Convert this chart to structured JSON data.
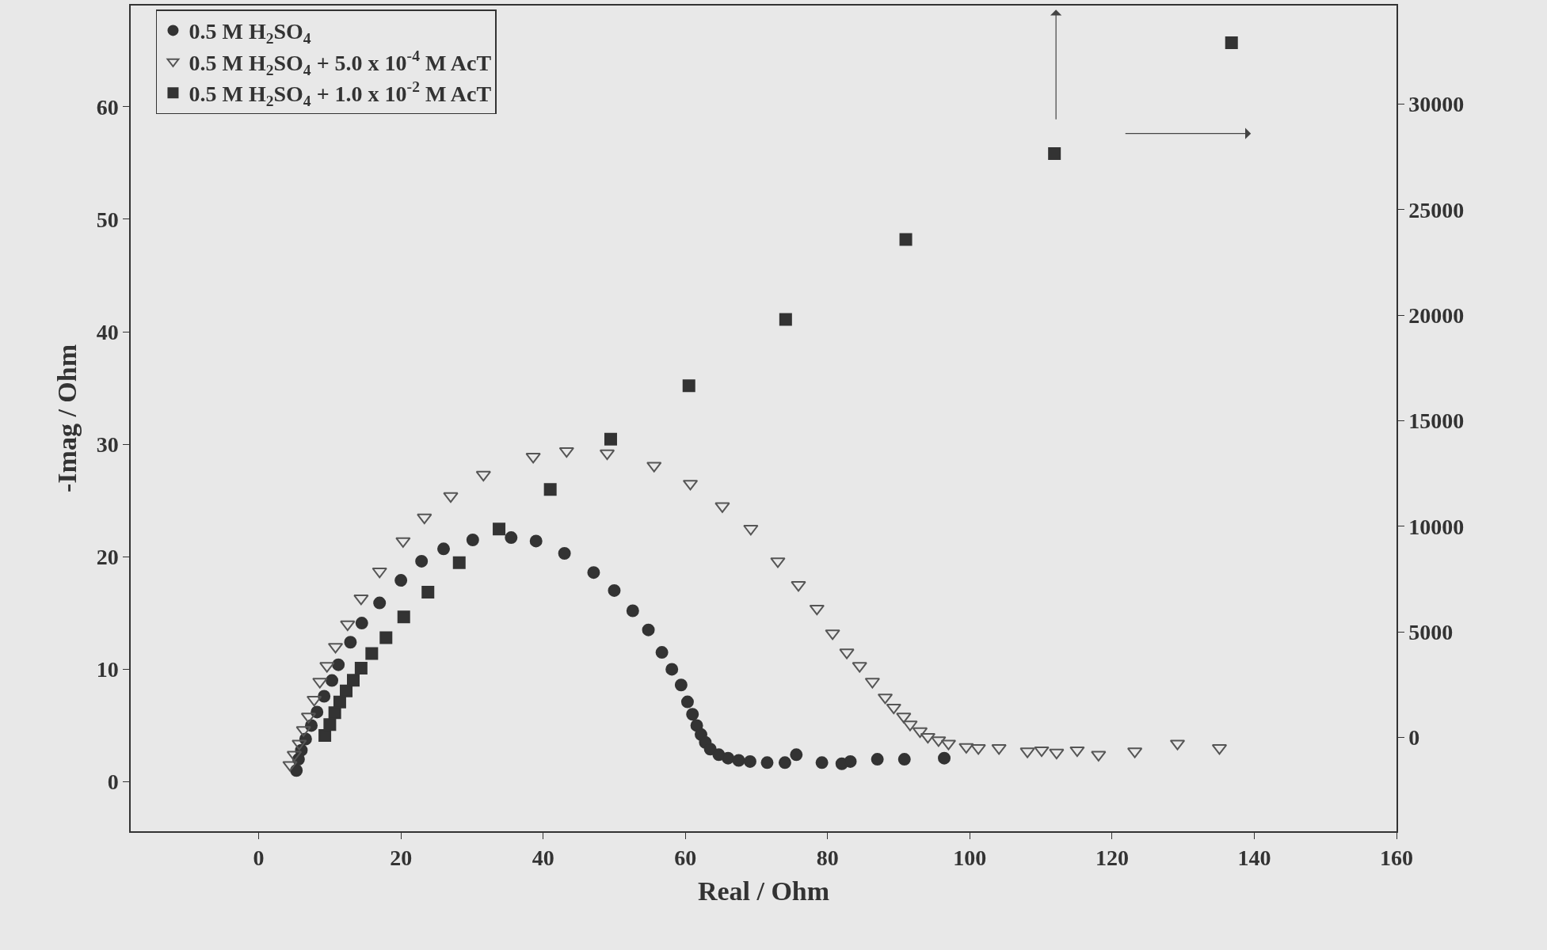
{
  "chart_data": {
    "type": "scatter",
    "xlabel": "Real / Ohm",
    "ylabel": "-Imag / Ohm",
    "xlim": [
      -18,
      160
    ],
    "xticks": [
      0,
      20,
      40,
      60,
      80,
      100,
      120,
      140,
      160
    ],
    "ylim": [
      -4.4,
      69
    ],
    "yticks": [
      0,
      10,
      20,
      30,
      40,
      50,
      60
    ],
    "y2lim": [
      -4445,
      34675
    ],
    "y2ticks": [
      0,
      5000,
      10000,
      15000,
      20000,
      25000,
      30000
    ],
    "legend": "top left",
    "grid": false,
    "series": [
      {
        "name": "0.5 M H$_{2}$SO$_{4}$",
        "color": "#333333",
        "marker": "circle",
        "x": [
          5.3,
          5.6,
          6.0,
          6.6,
          7.4,
          8.2,
          9.2,
          10.3,
          11.2,
          12.9,
          14.5,
          17.0,
          20.0,
          22.9,
          26.0,
          30.1,
          35.5,
          39.0,
          43.0,
          47.1,
          50.0,
          52.6,
          54.8,
          56.7,
          58.1,
          59.4,
          60.3,
          61.0,
          61.6,
          62.2,
          62.8,
          63.5,
          64.7,
          66.0,
          67.5,
          69.1,
          71.5,
          74.0,
          75.6,
          79.2,
          82.0,
          83.2,
          87.0,
          90.8,
          96.4
        ],
        "values": [
          1.0,
          2.0,
          2.8,
          3.8,
          5.0,
          6.2,
          7.6,
          9.0,
          10.4,
          12.4,
          14.1,
          15.9,
          17.9,
          19.6,
          20.7,
          21.5,
          21.7,
          21.4,
          20.3,
          18.6,
          17.0,
          15.2,
          13.5,
          11.5,
          10.0,
          8.6,
          7.1,
          6.0,
          5.0,
          4.2,
          3.5,
          2.9,
          2.4,
          2.1,
          1.9,
          1.8,
          1.7,
          1.7,
          2.4,
          1.7,
          1.6,
          1.8,
          2.0,
          2.0,
          2.1
        ]
      },
      {
        "name": "0.5 M H$_{2}$SO$_{4}$ + 5.0 x 10$^{-4}$ M AcT",
        "color": "#555555",
        "marker": "triangle",
        "x": [
          4.4,
          5.0,
          5.7,
          6.3,
          7.0,
          7.8,
          8.6,
          9.6,
          10.8,
          12.5,
          14.4,
          17.0,
          20.3,
          23.3,
          27.0,
          31.6,
          38.6,
          43.3,
          49.0,
          55.6,
          60.7,
          65.2,
          69.2,
          73.0,
          75.9,
          78.5,
          80.7,
          82.7,
          84.5,
          86.3,
          88.1,
          89.3,
          90.7,
          91.6,
          93.0,
          94.1,
          95.6,
          97.0,
          99.5,
          101.2,
          104.1,
          108.1,
          110.1,
          112.2,
          115.1,
          118.1,
          123.2,
          129.2,
          135.1
        ],
        "values": [
          1.5,
          2.4,
          3.4,
          4.6,
          5.8,
          7.3,
          8.9,
          10.3,
          12.0,
          14.0,
          16.3,
          18.7,
          21.4,
          23.5,
          25.4,
          27.3,
          28.9,
          29.4,
          29.2,
          28.1,
          26.5,
          24.5,
          22.5,
          19.6,
          17.5,
          15.4,
          13.2,
          11.5,
          10.3,
          8.9,
          7.5,
          6.6,
          5.8,
          5.1,
          4.5,
          4.0,
          3.7,
          3.4,
          3.1,
          3.0,
          3.0,
          2.7,
          2.8,
          2.6,
          2.8,
          2.4,
          2.7,
          3.4,
          3.0
        ]
      },
      {
        "name": "0.5 M H$_{2}$SO$_{4}$ + 1.0 x 10$^{-2}$ M AcT",
        "color": "#333333",
        "marker": "square",
        "axis": "y2",
        "x": [
          9.3,
          10.0,
          10.7,
          11.4,
          12.3,
          13.3,
          14.4,
          15.9,
          17.9,
          20.4,
          23.8,
          28.2,
          33.8,
          41.0,
          49.5,
          60.5,
          74.1,
          91.0,
          111.9,
          136.8
        ],
        "values": [
          90,
          610,
          1170,
          1680,
          2200,
          2710,
          3280,
          3980,
          4730,
          5710,
          6880,
          8280,
          9870,
          11750,
          14130,
          16660,
          19800,
          23590,
          27660,
          32910
        ]
      }
    ]
  }
}
